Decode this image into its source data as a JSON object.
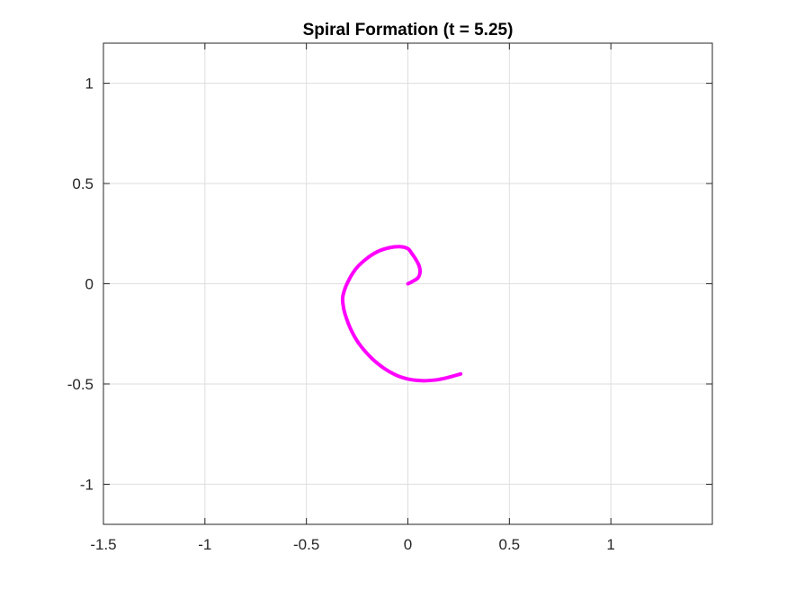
{
  "chart_data": {
    "type": "line",
    "title": "Spiral Formation (t = 5.25)",
    "xlabel": "",
    "ylabel": "",
    "xlim": [
      -1.5,
      1.5
    ],
    "ylim": [
      -1.2,
      1.2
    ],
    "xticks": [
      -1.5,
      -1,
      -0.5,
      0,
      0.5,
      1
    ],
    "xtick_labels": [
      "-1.5",
      "-1",
      "-0.5",
      "0",
      "0.5",
      "1"
    ],
    "yticks": [
      -1,
      -0.5,
      0,
      0.5,
      1
    ],
    "ytick_labels": [
      "-1",
      "-0.5",
      "0",
      "0.5",
      "1"
    ],
    "grid": true,
    "series": [
      {
        "color": "#ff00ff",
        "x": [
          0,
          0.02,
          0.05,
          0.06,
          0.055,
          0.04,
          0.02,
          0,
          -0.04,
          -0.09,
          -0.15,
          -0.21,
          -0.26,
          -0.3,
          -0.32,
          -0.32,
          -0.31,
          -0.28,
          -0.24,
          -0.18,
          -0.12,
          -0.06,
          0,
          0.06,
          0.1,
          0.15,
          0.2,
          0.26
        ],
        "y": [
          0,
          0.01,
          0.03,
          0.06,
          0.09,
          0.12,
          0.15,
          0.175,
          0.185,
          0.18,
          0.16,
          0.12,
          0.07,
          0,
          -0.06,
          -0.1,
          -0.15,
          -0.23,
          -0.3,
          -0.37,
          -0.42,
          -0.455,
          -0.475,
          -0.483,
          -0.483,
          -0.478,
          -0.467,
          -0.45
        ]
      }
    ]
  }
}
